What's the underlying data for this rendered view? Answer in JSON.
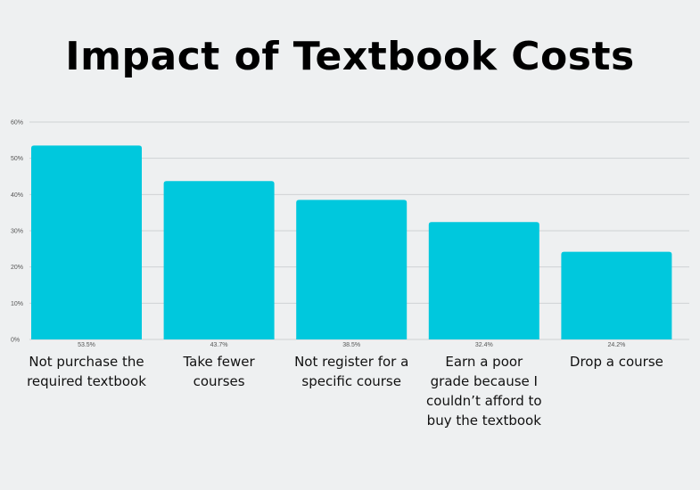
{
  "chart_data": {
    "type": "bar",
    "title": "Impact of Textbook Costs",
    "categories": [
      [
        "Not purchase the",
        "required textbook"
      ],
      [
        "Take fewer",
        "courses"
      ],
      [
        "Not register for a",
        "specific course"
      ],
      [
        "Earn a poor",
        "grade because I",
        "couldn’t afford to",
        "buy the textbook"
      ],
      [
        "Drop a course"
      ]
    ],
    "values": [
      53.5,
      43.7,
      38.5,
      32.4,
      24.2
    ],
    "value_labels": [
      "53.5%",
      "43.7%",
      "38.5%",
      "32.4%",
      "24.2%"
    ],
    "yticks": [
      "0%",
      "10%",
      "20%",
      "30%",
      "40%",
      "50%",
      "60%"
    ],
    "ylim": [
      0,
      60
    ],
    "xlabel": "",
    "ylabel": "",
    "grid": true,
    "bar_color": "#00c8dd",
    "grid_color": "#cfd2d4"
  }
}
